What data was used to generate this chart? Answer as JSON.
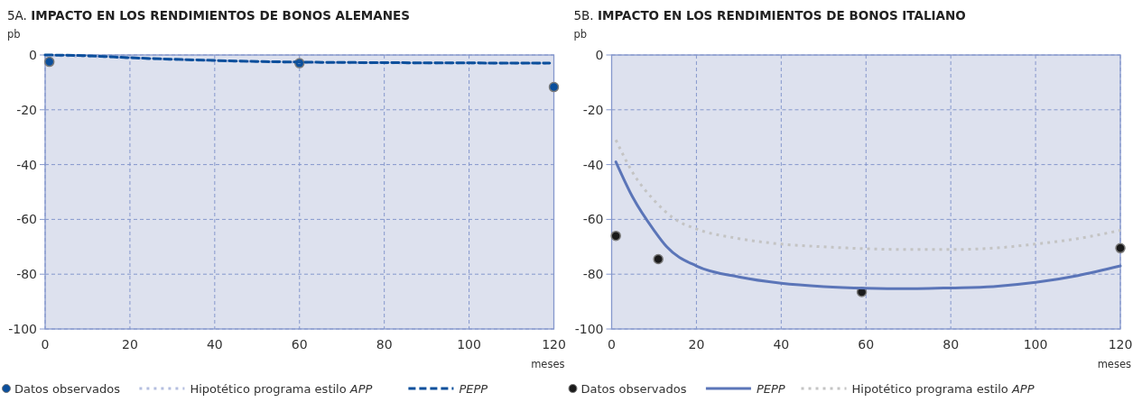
{
  "chart_data": [
    {
      "type": "line",
      "title": "5A. IMPACTO EN LOS RENDIMIENTOS DE BONOS ALEMANES",
      "ylabel": "pb",
      "xlabel": "meses",
      "xlim": [
        0,
        120
      ],
      "xticks": [
        0,
        20,
        40,
        60,
        80,
        100,
        120
      ],
      "ylim": [
        -100,
        0
      ],
      "yticks": [
        -100,
        -80,
        -60,
        -40,
        -20,
        0
      ],
      "grid": true,
      "legend": "bottom",
      "series": [
        {
          "name": "Datos observados",
          "type": "scatter",
          "marker": "circle",
          "color": "#0b4f9c",
          "x": [
            1,
            60,
            120
          ],
          "values": [
            -2.5,
            -3,
            -11.7
          ]
        },
        {
          "name": "Hipotético programa estilo APP",
          "line_style": "dotted",
          "color": "#b4bedf",
          "x": [
            0,
            10,
            20,
            40,
            60,
            80,
            100,
            119
          ],
          "values": [
            -0.2,
            -0.5,
            -1.1,
            -2.1,
            -2.7,
            -2.9,
            -3,
            -3.1
          ]
        },
        {
          "name": "PEPP",
          "line_style": "dashed",
          "color": "#0b4f9c",
          "x": [
            0,
            10,
            20,
            40,
            60,
            80,
            100,
            119
          ],
          "values": [
            0,
            -0.3,
            -1,
            -2,
            -2.6,
            -2.8,
            -2.9,
            -3
          ]
        }
      ]
    },
    {
      "type": "line",
      "title": "5B. IMPACTO EN LOS RENDIMIENTOS DE BONOS ITALIANO",
      "ylabel": "pb",
      "xlabel": "meses",
      "xlim": [
        0,
        120
      ],
      "xticks": [
        0,
        20,
        40,
        60,
        80,
        100,
        120
      ],
      "ylim": [
        -100,
        0
      ],
      "yticks": [
        -100,
        -80,
        -60,
        -40,
        -20,
        0
      ],
      "grid": true,
      "legend": "bottom",
      "series": [
        {
          "name": "Datos observados",
          "type": "scatter",
          "marker": "circle",
          "color": "#1a1a1a",
          "x": [
            1,
            11,
            59,
            120
          ],
          "values": [
            -66,
            -74.5,
            -86.5,
            -70.5
          ]
        },
        {
          "name": "PEPP",
          "line_style": "solid",
          "color": "#5b75b8",
          "x": [
            1,
            5,
            10,
            13,
            20,
            30,
            40,
            50,
            60,
            70,
            80,
            90,
            100,
            110,
            120
          ],
          "values": [
            -39,
            -52,
            -64,
            -70,
            -77,
            -81,
            -83.3,
            -84.5,
            -85.1,
            -85.3,
            -85,
            -84.5,
            -83,
            -80.5,
            -77
          ]
        },
        {
          "name": "Hipotético programa estilo APP",
          "line_style": "dotted",
          "color": "#c4c4c4",
          "x": [
            1,
            5,
            10,
            15,
            20,
            30,
            40,
            50,
            60,
            70,
            80,
            90,
            100,
            110,
            120
          ],
          "values": [
            -31,
            -43,
            -53,
            -60,
            -63.5,
            -67,
            -69,
            -70,
            -70.7,
            -71,
            -71,
            -70.5,
            -69,
            -67,
            -64
          ]
        }
      ]
    }
  ]
}
